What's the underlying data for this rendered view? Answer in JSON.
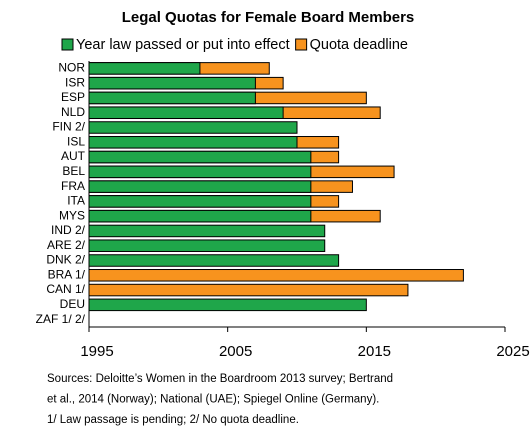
{
  "chart_data": {
    "type": "bar",
    "orientation": "horizontal",
    "overlap": true,
    "title": "Legal Quotas for Female Board Members",
    "categories": [
      "NOR",
      "ISR",
      "ESP",
      "NLD",
      "FIN 2/",
      "ISL",
      "AUT",
      "BEL",
      "FRA",
      "ITA",
      "MYS",
      "IND 2/",
      "ARE 2/",
      "DNK 2/",
      "BRA 1/",
      "CAN 1/",
      "DEU",
      "ZAF 1/ 2/"
    ],
    "series": [
      {
        "name": "Year law passed or put into effect",
        "color": "#1fa64a",
        "values": [
          2003,
          2007,
          2007,
          2009,
          2010,
          2010,
          2011,
          2011,
          2011,
          2011,
          2011,
          2012,
          2012,
          2013,
          null,
          null,
          2015,
          null
        ]
      },
      {
        "name": "Quota deadline",
        "color": "#f7931e",
        "values": [
          2008,
          2009,
          2015,
          2016,
          null,
          2013,
          2013,
          2017,
          2014,
          2013,
          2016,
          null,
          null,
          null,
          2022,
          2018,
          null,
          null
        ]
      }
    ],
    "xlim": [
      1995,
      2025
    ],
    "xticks": [
      1995,
      2005,
      2015,
      2025
    ],
    "grid": false,
    "legend": "top",
    "notes": [
      "Sources: Deloitte’s Women in the Boardroom 2013 survey; Bertrand",
      "et al., 2014 (Norway); National (UAE); Spiegel Online (Germany).",
      "1/ Law passage is pending;  2/ No quota deadline."
    ]
  }
}
